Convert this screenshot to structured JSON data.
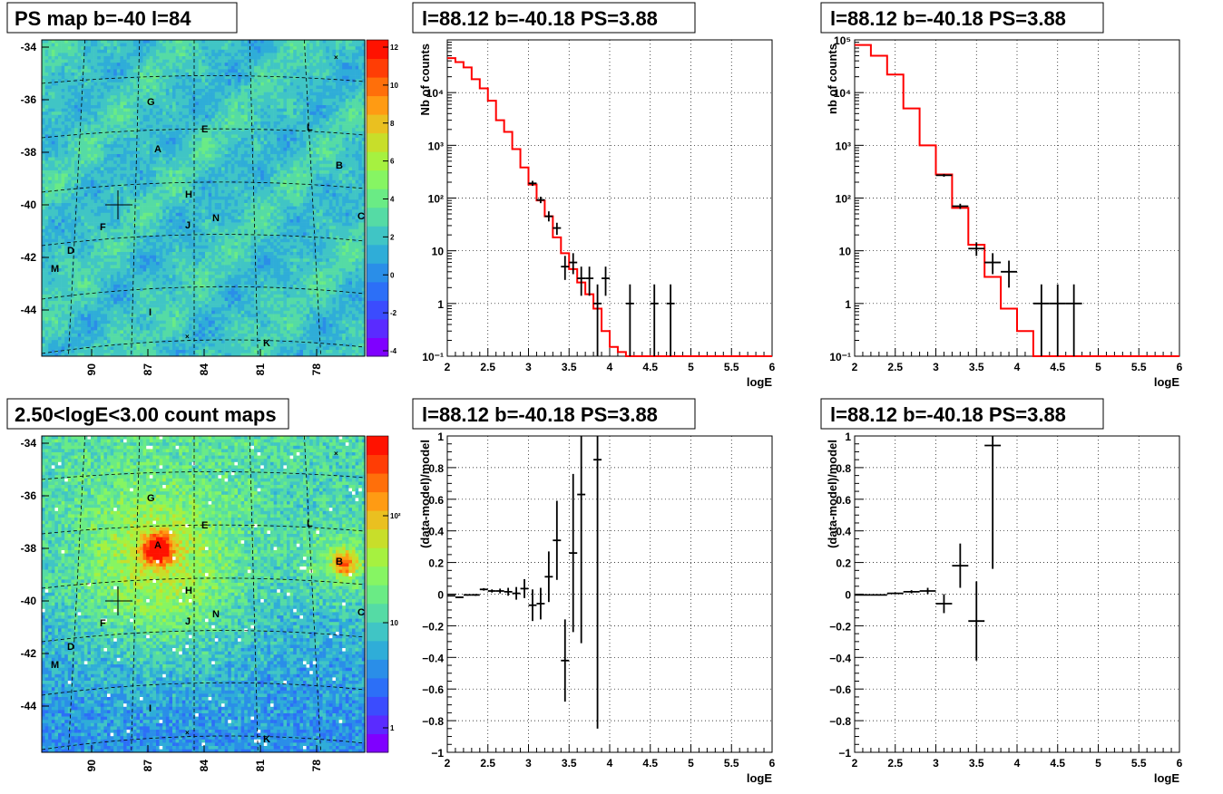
{
  "panels": {
    "map1_title": "PS map b=-40 l=84",
    "map2_title": "2.50<logE<3.00 count maps",
    "spec1_title": "l=88.12 b=-40.18 PS=3.88",
    "spec2_title": "l=88.12 b=-40.18 PS=3.88",
    "res1_title": "l=88.12 b=-40.18 PS=3.88",
    "res2_title": "l=88.12 b=-40.18 PS=3.88"
  },
  "colors": {
    "model_line": "#ff0000",
    "data_points": "#000000",
    "palette": [
      "#7f00ff",
      "#5a2bff",
      "#3b4cfe",
      "#2c6ff7",
      "#2a8ee8",
      "#2fadd8",
      "#40c5c5",
      "#55dba5",
      "#6aeb85",
      "#86f563",
      "#a6f140",
      "#c8de2a",
      "#eac020",
      "#ff9b13",
      "#ff6f0a",
      "#ff3d05",
      "#ff1200"
    ]
  },
  "maps": [
    {
      "ytick_labels": [
        "-34",
        "-36",
        "-38",
        "-40",
        "-42",
        "-44"
      ],
      "xtick_labels": [
        "90",
        "87",
        "84",
        "81",
        "78"
      ],
      "colorbar_labels": [
        "12",
        "10",
        "8",
        "6",
        "4",
        "2",
        "0",
        "-2",
        "-4"
      ],
      "scale": "linear",
      "range": [
        -5,
        12
      ],
      "markers": [
        "A",
        "B",
        "C",
        "D",
        "E",
        "F",
        "G",
        "H",
        "I",
        "J",
        "K",
        "L",
        "M",
        "N"
      ]
    },
    {
      "ytick_labels": [
        "-34",
        "-36",
        "-38",
        "-40",
        "-42",
        "-44"
      ],
      "xtick_labels": [
        "90",
        "87",
        "84",
        "81",
        "78"
      ],
      "colorbar_labels": [
        "10²",
        "10",
        "1"
      ],
      "scale": "log",
      "range": [
        0.5,
        300
      ],
      "markers": [
        "A",
        "B",
        "C",
        "D",
        "E",
        "F",
        "G",
        "H",
        "I",
        "J",
        "K",
        "L",
        "M",
        "N"
      ]
    }
  ],
  "chart_data": [
    {
      "type": "histogram",
      "title": "l=88.12 b=-40.18 PS=3.88",
      "xlabel": "logE",
      "ylabel": "Nb of counts",
      "xlim": [
        2,
        6
      ],
      "ylim": [
        0.1,
        100000
      ],
      "ylog": true,
      "grid": true,
      "xtick_labels": [
        "2",
        "2.5",
        "3",
        "3.5",
        "4",
        "4.5",
        "5",
        "5.5",
        "6"
      ],
      "ytick_labels": [
        "10⁻¹",
        "1",
        "10",
        "10²",
        "10³",
        "10⁴"
      ],
      "model": {
        "edges": [
          2.0,
          2.1,
          2.2,
          2.3,
          2.4,
          2.5,
          2.6,
          2.7,
          2.8,
          2.9,
          3.0,
          3.1,
          3.2,
          3.3,
          3.4,
          3.5,
          3.6,
          3.7,
          3.8,
          3.9,
          4.0,
          4.1,
          4.2,
          6.0
        ],
        "values": [
          45000,
          38000,
          30000,
          18000,
          12000,
          7000,
          3000,
          1800,
          850,
          380,
          180,
          90,
          45,
          18,
          9,
          4.5,
          2.5,
          1.5,
          0.8,
          0.3,
          0.15,
          0.12,
          0.1
        ]
      },
      "points": [
        {
          "x": 3.05,
          "xerr": 0.05,
          "y": 190,
          "ylo": 170,
          "yhi": 212
        },
        {
          "x": 3.15,
          "xerr": 0.05,
          "y": 92,
          "ylo": 80,
          "yhi": 106
        },
        {
          "x": 3.25,
          "xerr": 0.05,
          "y": 45,
          "ylo": 36,
          "yhi": 56
        },
        {
          "x": 3.35,
          "xerr": 0.05,
          "y": 27,
          "ylo": 20,
          "yhi": 34
        },
        {
          "x": 3.45,
          "xerr": 0.05,
          "y": 5,
          "ylo": 2.8,
          "yhi": 8
        },
        {
          "x": 3.55,
          "xerr": 0.05,
          "y": 6,
          "ylo": 3.6,
          "yhi": 9
        },
        {
          "x": 3.65,
          "xerr": 0.05,
          "y": 3,
          "ylo": 1.4,
          "yhi": 5
        },
        {
          "x": 3.75,
          "xerr": 0.05,
          "y": 3,
          "ylo": 1.4,
          "yhi": 5
        },
        {
          "x": 3.85,
          "xerr": 0.05,
          "y": 1,
          "ylo": 0.1,
          "yhi": 2.3
        },
        {
          "x": 3.95,
          "xerr": 0.05,
          "y": 3,
          "ylo": 1.4,
          "yhi": 5
        },
        {
          "x": 4.25,
          "xerr": 0.05,
          "y": 1,
          "ylo": 0.1,
          "yhi": 2.3
        },
        {
          "x": 4.55,
          "xerr": 0.05,
          "y": 1,
          "ylo": 0.1,
          "yhi": 2.3
        },
        {
          "x": 4.75,
          "xerr": 0.05,
          "y": 1,
          "ylo": 0.1,
          "yhi": 2.3
        }
      ]
    },
    {
      "type": "histogram",
      "title": "l=88.12 b=-40.18 PS=3.88",
      "xlabel": "logE",
      "ylabel": "nb of counts",
      "xlim": [
        2,
        6
      ],
      "ylim": [
        0.1,
        100000
      ],
      "ylog": true,
      "grid": true,
      "xtick_labels": [
        "2",
        "2.5",
        "3",
        "3.5",
        "4",
        "4.5",
        "5",
        "5.5",
        "6"
      ],
      "ytick_labels": [
        "10⁻¹",
        "1",
        "10",
        "10²",
        "10³",
        "10⁴",
        "10⁵"
      ],
      "model": {
        "edges": [
          2.0,
          2.2,
          2.4,
          2.6,
          2.8,
          3.0,
          3.2,
          3.4,
          3.6,
          3.8,
          4.0,
          4.2,
          6.0
        ],
        "values": [
          80000,
          50000,
          22000,
          5000,
          1000,
          280,
          65,
          13,
          3.2,
          0.8,
          0.3,
          0.1
        ]
      },
      "points": [
        {
          "x": 3.1,
          "xerr": 0.1,
          "y": 270,
          "ylo": 254,
          "yhi": 286
        },
        {
          "x": 3.3,
          "xerr": 0.1,
          "y": 70,
          "ylo": 62,
          "yhi": 78
        },
        {
          "x": 3.5,
          "xerr": 0.1,
          "y": 11,
          "ylo": 8,
          "yhi": 14.5
        },
        {
          "x": 3.7,
          "xerr": 0.1,
          "y": 6,
          "ylo": 3.6,
          "yhi": 9
        },
        {
          "x": 3.9,
          "xerr": 0.1,
          "y": 4,
          "ylo": 2,
          "yhi": 6.5
        },
        {
          "x": 4.3,
          "xerr": 0.1,
          "y": 1,
          "ylo": 0.1,
          "yhi": 2.3
        },
        {
          "x": 4.5,
          "xerr": 0.1,
          "y": 1,
          "ylo": 0.1,
          "yhi": 2.3
        },
        {
          "x": 4.7,
          "xerr": 0.1,
          "y": 1,
          "ylo": 0.1,
          "yhi": 2.3
        }
      ]
    },
    {
      "type": "scatter",
      "title": "l=88.12 b=-40.18 PS=3.88",
      "xlabel": "logE",
      "ylabel": "(data-model)/model",
      "xlim": [
        2,
        6
      ],
      "ylim": [
        -1,
        1
      ],
      "grid": true,
      "xtick_labels": [
        "2",
        "2.5",
        "3",
        "3.5",
        "4",
        "4.5",
        "5",
        "5.5",
        "6"
      ],
      "ytick_labels": [
        "−1",
        "−0.8",
        "−0.6",
        "−0.4",
        "−0.2",
        "0",
        "0.2",
        "0.4",
        "0.6",
        "0.8",
        "1"
      ],
      "points": [
        {
          "x": 2.05,
          "xerr": 0.05,
          "y": -0.01,
          "err": 0.004
        },
        {
          "x": 2.15,
          "xerr": 0.05,
          "y": -0.02,
          "err": 0.004
        },
        {
          "x": 2.25,
          "xerr": 0.05,
          "y": -0.005,
          "err": 0.005
        },
        {
          "x": 2.35,
          "xerr": 0.05,
          "y": -0.005,
          "err": 0.006
        },
        {
          "x": 2.45,
          "xerr": 0.05,
          "y": 0.03,
          "err": 0.008
        },
        {
          "x": 2.55,
          "xerr": 0.05,
          "y": 0.02,
          "err": 0.01
        },
        {
          "x": 2.65,
          "xerr": 0.05,
          "y": 0.02,
          "err": 0.015
        },
        {
          "x": 2.75,
          "xerr": 0.05,
          "y": 0.015,
          "err": 0.025
        },
        {
          "x": 2.85,
          "xerr": 0.05,
          "y": 0.005,
          "err": 0.04
        },
        {
          "x": 2.95,
          "xerr": 0.05,
          "y": 0.035,
          "err": 0.06
        },
        {
          "x": 3.05,
          "xerr": 0.05,
          "y": -0.07,
          "err": 0.1
        },
        {
          "x": 3.15,
          "xerr": 0.05,
          "y": -0.06,
          "err": 0.1
        },
        {
          "x": 3.25,
          "xerr": 0.05,
          "y": 0.11,
          "err": 0.16
        },
        {
          "x": 3.35,
          "xerr": 0.05,
          "y": 0.34,
          "err": 0.25
        },
        {
          "x": 3.45,
          "xerr": 0.05,
          "y": -0.42,
          "err": 0.26
        },
        {
          "x": 3.55,
          "xerr": 0.05,
          "y": 0.26,
          "err": 0.5
        },
        {
          "x": 3.65,
          "xerr": 0.05,
          "y": 0.63,
          "err": 0.94
        },
        {
          "x": 3.85,
          "xerr": 0.05,
          "y": 0.85,
          "err": 1.7
        }
      ]
    },
    {
      "type": "scatter",
      "title": "l=88.12 b=-40.18 PS=3.88",
      "xlabel": "logE",
      "ylabel": "(data-model)/model",
      "xlim": [
        2,
        6
      ],
      "ylim": [
        -1,
        1
      ],
      "grid": true,
      "xtick_labels": [
        "2",
        "2.5",
        "3",
        "3.5",
        "4",
        "4.5",
        "5",
        "5.5",
        "6"
      ],
      "ytick_labels": [
        "−1",
        "−0.8",
        "−0.6",
        "−0.4",
        "−0.2",
        "0",
        "0.2",
        "0.4",
        "0.6",
        "0.8",
        "1"
      ],
      "points": [
        {
          "x": 2.1,
          "xerr": 0.1,
          "y": -0.005,
          "err": 0.003
        },
        {
          "x": 2.3,
          "xerr": 0.1,
          "y": -0.005,
          "err": 0.004
        },
        {
          "x": 2.5,
          "xerr": 0.1,
          "y": 0.005,
          "err": 0.006
        },
        {
          "x": 2.7,
          "xerr": 0.1,
          "y": 0.015,
          "err": 0.01
        },
        {
          "x": 2.9,
          "xerr": 0.1,
          "y": 0.02,
          "err": 0.02
        },
        {
          "x": 3.1,
          "xerr": 0.1,
          "y": -0.06,
          "err": 0.06
        },
        {
          "x": 3.3,
          "xerr": 0.1,
          "y": 0.18,
          "err": 0.14
        },
        {
          "x": 3.5,
          "xerr": 0.1,
          "y": -0.17,
          "err": 0.25
        },
        {
          "x": 3.7,
          "xerr": 0.1,
          "y": 0.94,
          "err": 0.78
        }
      ]
    }
  ]
}
